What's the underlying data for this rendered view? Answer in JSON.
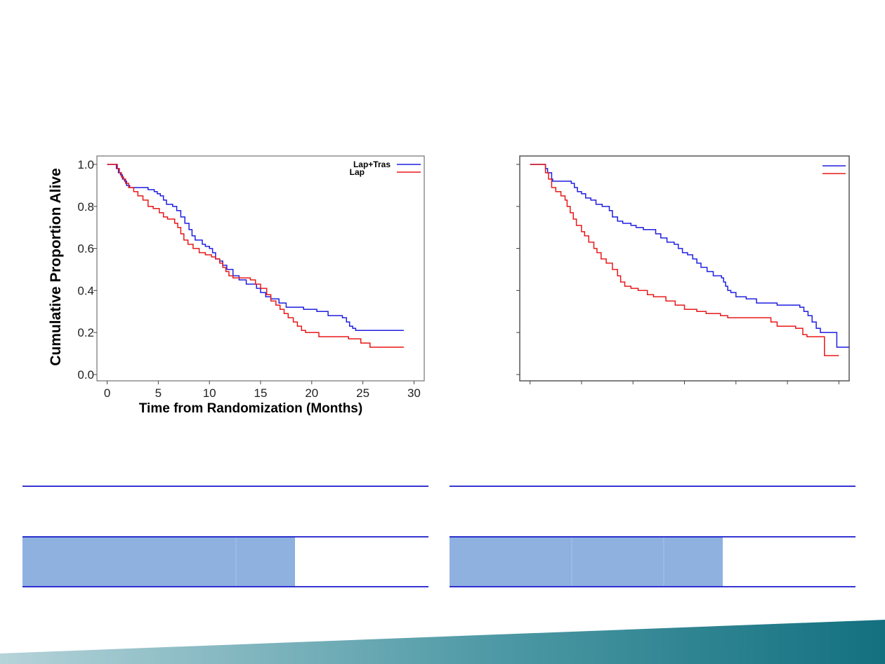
{
  "colors": {
    "series_a": "#1f1fe0",
    "series_b": "#e81818",
    "table_rule": "#1a1acc",
    "table_fill": "#8eb1e0",
    "banner_from": "#b5d3d9",
    "banner_to": "#13707f"
  },
  "chart_data": [
    {
      "type": "line",
      "step": true,
      "xlabel": "Time from Randomization (Months)",
      "ylabel": "Cumulative Proportion Alive",
      "xlim": [
        -1,
        31
      ],
      "ylim": [
        -0.03,
        1.04
      ],
      "xticks": [
        0,
        5,
        10,
        15,
        20,
        25,
        30
      ],
      "yticks": [
        "0.0",
        "0.2",
        "0.4",
        "0.6",
        "0.8",
        "1.0"
      ],
      "legend": {
        "position": "top-right"
      },
      "series": [
        {
          "name": "Lap+Tras",
          "color": "#1f1fe0",
          "points": [
            [
              0,
              1.0
            ],
            [
              0.7,
              1.0
            ],
            [
              0.9,
              0.98
            ],
            [
              1.1,
              0.96
            ],
            [
              1.3,
              0.95
            ],
            [
              1.5,
              0.93
            ],
            [
              1.7,
              0.92
            ],
            [
              1.9,
              0.9
            ],
            [
              2.2,
              0.89
            ],
            [
              2.5,
              0.89
            ],
            [
              4.0,
              0.88
            ],
            [
              4.6,
              0.87
            ],
            [
              4.9,
              0.86
            ],
            [
              5.2,
              0.85
            ],
            [
              5.5,
              0.83
            ],
            [
              5.8,
              0.81
            ],
            [
              6.4,
              0.8
            ],
            [
              6.8,
              0.78
            ],
            [
              7.2,
              0.75
            ],
            [
              7.6,
              0.72
            ],
            [
              8.0,
              0.69
            ],
            [
              8.3,
              0.66
            ],
            [
              8.6,
              0.64
            ],
            [
              9.3,
              0.62
            ],
            [
              9.6,
              0.61
            ],
            [
              10.0,
              0.6
            ],
            [
              10.3,
              0.58
            ],
            [
              10.6,
              0.55
            ],
            [
              11.0,
              0.54
            ],
            [
              11.3,
              0.52
            ],
            [
              11.7,
              0.5
            ],
            [
              12.3,
              0.47
            ],
            [
              12.9,
              0.45
            ],
            [
              13.6,
              0.43
            ],
            [
              14.6,
              0.41
            ],
            [
              15.0,
              0.39
            ],
            [
              15.5,
              0.37
            ],
            [
              16.0,
              0.36
            ],
            [
              16.8,
              0.34
            ],
            [
              17.5,
              0.32
            ],
            [
              19.2,
              0.31
            ],
            [
              20.5,
              0.3
            ],
            [
              21.6,
              0.28
            ],
            [
              23.0,
              0.27
            ],
            [
              23.4,
              0.25
            ],
            [
              23.7,
              0.23
            ],
            [
              24.0,
              0.22
            ],
            [
              24.3,
              0.21
            ],
            [
              29.0,
              0.21
            ]
          ]
        },
        {
          "name": "Lap",
          "color": "#e81818",
          "points": [
            [
              0,
              1.0
            ],
            [
              0.8,
              1.0
            ],
            [
              1.0,
              0.98
            ],
            [
              1.2,
              0.96
            ],
            [
              1.4,
              0.94
            ],
            [
              1.6,
              0.93
            ],
            [
              1.8,
              0.91
            ],
            [
              2.1,
              0.89
            ],
            [
              2.6,
              0.87
            ],
            [
              3.0,
              0.85
            ],
            [
              3.5,
              0.83
            ],
            [
              4.0,
              0.8
            ],
            [
              4.5,
              0.79
            ],
            [
              5.1,
              0.77
            ],
            [
              5.5,
              0.75
            ],
            [
              5.9,
              0.74
            ],
            [
              6.6,
              0.72
            ],
            [
              6.9,
              0.7
            ],
            [
              7.2,
              0.67
            ],
            [
              7.5,
              0.64
            ],
            [
              7.9,
              0.62
            ],
            [
              8.4,
              0.6
            ],
            [
              9.0,
              0.58
            ],
            [
              9.6,
              0.57
            ],
            [
              10.2,
              0.56
            ],
            [
              10.6,
              0.55
            ],
            [
              11.0,
              0.53
            ],
            [
              11.3,
              0.51
            ],
            [
              11.6,
              0.49
            ],
            [
              11.9,
              0.47
            ],
            [
              12.3,
              0.46
            ],
            [
              14.0,
              0.45
            ],
            [
              14.5,
              0.43
            ],
            [
              15.0,
              0.41
            ],
            [
              15.6,
              0.38
            ],
            [
              16.0,
              0.35
            ],
            [
              16.5,
              0.33
            ],
            [
              16.9,
              0.31
            ],
            [
              17.3,
              0.29
            ],
            [
              17.7,
              0.27
            ],
            [
              18.2,
              0.25
            ],
            [
              18.6,
              0.23
            ],
            [
              19.0,
              0.21
            ],
            [
              19.4,
              0.2
            ],
            [
              20.4,
              0.2
            ],
            [
              20.7,
              0.18
            ],
            [
              22.1,
              0.18
            ],
            [
              23.6,
              0.17
            ],
            [
              24.8,
              0.15
            ],
            [
              25.7,
              0.13
            ],
            [
              29.0,
              0.13
            ]
          ]
        }
      ]
    },
    {
      "type": "line",
      "step": true,
      "xlim": [
        -1,
        31
      ],
      "ylim": [
        -0.03,
        1.04
      ],
      "xticks": [
        0,
        5,
        10,
        15,
        20,
        25,
        30
      ],
      "yticks": [
        0,
        0.2,
        0.4,
        0.6,
        0.8,
        1.0
      ],
      "legend": {
        "position": "top-right"
      },
      "series": [
        {
          "color": "#1f1fe0",
          "points": [
            [
              0,
              1.0
            ],
            [
              1.4,
              1.0
            ],
            [
              1.5,
              0.98
            ],
            [
              1.7,
              0.96
            ],
            [
              2.1,
              0.93
            ],
            [
              2.2,
              0.92
            ],
            [
              4.0,
              0.91
            ],
            [
              4.3,
              0.89
            ],
            [
              4.6,
              0.87
            ],
            [
              5.0,
              0.86
            ],
            [
              5.4,
              0.84
            ],
            [
              5.9,
              0.83
            ],
            [
              6.4,
              0.81
            ],
            [
              7.0,
              0.8
            ],
            [
              7.7,
              0.78
            ],
            [
              8.0,
              0.75
            ],
            [
              8.5,
              0.73
            ],
            [
              9.0,
              0.72
            ],
            [
              9.8,
              0.71
            ],
            [
              10.3,
              0.7
            ],
            [
              11.0,
              0.69
            ],
            [
              11.8,
              0.69
            ],
            [
              12.2,
              0.67
            ],
            [
              12.7,
              0.65
            ],
            [
              13.3,
              0.63
            ],
            [
              14.0,
              0.62
            ],
            [
              14.4,
              0.6
            ],
            [
              14.8,
              0.58
            ],
            [
              15.3,
              0.57
            ],
            [
              15.8,
              0.55
            ],
            [
              16.2,
              0.53
            ],
            [
              16.6,
              0.51
            ],
            [
              17.2,
              0.49
            ],
            [
              17.8,
              0.47
            ],
            [
              18.6,
              0.46
            ],
            [
              18.8,
              0.44
            ],
            [
              19.0,
              0.42
            ],
            [
              19.2,
              0.4
            ],
            [
              19.5,
              0.39
            ],
            [
              20.0,
              0.37
            ],
            [
              21.0,
              0.36
            ],
            [
              22.0,
              0.34
            ],
            [
              24.0,
              0.33
            ],
            [
              26.2,
              0.32
            ],
            [
              26.6,
              0.3
            ],
            [
              27.0,
              0.28
            ],
            [
              27.4,
              0.25
            ],
            [
              27.8,
              0.22
            ],
            [
              28.2,
              0.2
            ],
            [
              29.6,
              0.2
            ],
            [
              29.8,
              0.13
            ],
            [
              31.0,
              0.13
            ]
          ]
        },
        {
          "color": "#e81818",
          "points": [
            [
              0,
              1.0
            ],
            [
              1.3,
              1.0
            ],
            [
              1.5,
              0.96
            ],
            [
              1.8,
              0.93
            ],
            [
              2.1,
              0.89
            ],
            [
              2.5,
              0.87
            ],
            [
              3.0,
              0.85
            ],
            [
              3.4,
              0.83
            ],
            [
              3.6,
              0.8
            ],
            [
              3.9,
              0.77
            ],
            [
              4.2,
              0.74
            ],
            [
              4.5,
              0.71
            ],
            [
              5.0,
              0.68
            ],
            [
              5.3,
              0.66
            ],
            [
              5.7,
              0.63
            ],
            [
              6.2,
              0.6
            ],
            [
              6.5,
              0.58
            ],
            [
              6.9,
              0.55
            ],
            [
              7.4,
              0.53
            ],
            [
              8.0,
              0.5
            ],
            [
              8.5,
              0.47
            ],
            [
              8.8,
              0.44
            ],
            [
              9.2,
              0.42
            ],
            [
              9.8,
              0.41
            ],
            [
              10.5,
              0.4
            ],
            [
              11.4,
              0.38
            ],
            [
              12.0,
              0.37
            ],
            [
              13.2,
              0.35
            ],
            [
              14.1,
              0.33
            ],
            [
              15.0,
              0.31
            ],
            [
              16.2,
              0.3
            ],
            [
              17.1,
              0.29
            ],
            [
              18.5,
              0.28
            ],
            [
              19.2,
              0.27
            ],
            [
              21.0,
              0.27
            ],
            [
              23.0,
              0.27
            ],
            [
              23.4,
              0.25
            ],
            [
              24.0,
              0.23
            ],
            [
              25.8,
              0.22
            ],
            [
              26.5,
              0.19
            ],
            [
              26.9,
              0.18
            ],
            [
              28.2,
              0.18
            ],
            [
              28.6,
              0.09
            ],
            [
              30.0,
              0.09
            ]
          ]
        }
      ]
    }
  ]
}
